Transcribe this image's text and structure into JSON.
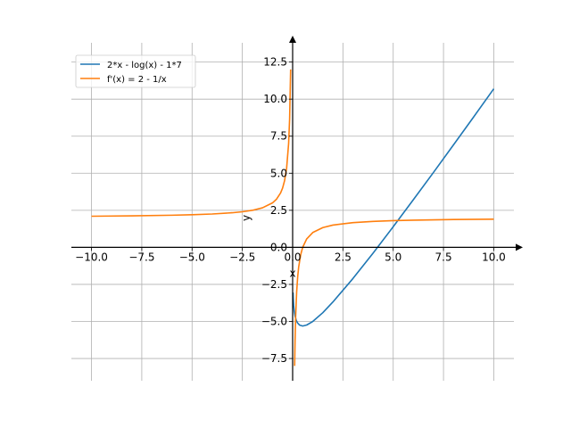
{
  "chart_data": {
    "type": "line",
    "xlabel": "x",
    "ylabel": "y",
    "xlim": [
      -11.0,
      11.0
    ],
    "ylim": [
      -9.0,
      13.8
    ],
    "grid": true,
    "legend": "top-left",
    "x_ticks": [
      -10.0,
      -7.5,
      -5.0,
      -2.5,
      0.0,
      2.5,
      5.0,
      7.5,
      10.0
    ],
    "x_tick_labels": [
      "−10.0",
      "−7.5",
      "−5.0",
      "−2.5",
      "0.0",
      "2.5",
      "5.0",
      "7.5",
      "10.0"
    ],
    "y_ticks": [
      -7.5,
      -5.0,
      -2.5,
      0.0,
      2.5,
      5.0,
      7.5,
      10.0,
      12.5
    ],
    "y_tick_labels": [
      "−7.5",
      "−5.0",
      "−2.5",
      "0.0",
      "2.5",
      "5.0",
      "7.5",
      "10.0",
      "12.5"
    ],
    "series": [
      {
        "name": "2*x - log(x) - 1*7",
        "color": "#1f77b4",
        "x": [
          0.02,
          0.03,
          0.05,
          0.08,
          0.12,
          0.18,
          0.25,
          0.35,
          0.5,
          0.7,
          1.0,
          1.5,
          2.0,
          3.0,
          4.0,
          5.0,
          6.0,
          7.0,
          8.0,
          9.0,
          10.0
        ],
        "y": [
          -3.05,
          -3.43,
          -3.9,
          -4.31,
          -4.64,
          -4.93,
          -5.11,
          -5.25,
          -5.31,
          -5.24,
          -5.0,
          -4.41,
          -3.69,
          -2.1,
          -0.39,
          1.39,
          3.21,
          5.05,
          6.92,
          8.8,
          10.7
        ]
      },
      {
        "name": "f'(x) = 2 - 1/x",
        "color": "#ff7f0e",
        "x": [
          -10.0,
          -8.0,
          -6.0,
          -5.0,
          -4.0,
          -3.0,
          -2.5,
          -2.0,
          -1.5,
          -1.0,
          -0.8,
          -0.6,
          -0.5,
          -0.4,
          -0.3,
          -0.2,
          -0.15,
          -0.1,
          null,
          0.1,
          0.12,
          0.15,
          0.2,
          0.25,
          0.3,
          0.4,
          0.5,
          0.7,
          1.0,
          1.5,
          2.0,
          3.0,
          4.0,
          5.0,
          6.0,
          7.0,
          8.0,
          10.0
        ],
        "y": [
          2.1,
          2.125,
          2.167,
          2.2,
          2.25,
          2.333,
          2.4,
          2.5,
          2.667,
          3.0,
          3.25,
          3.667,
          4.0,
          4.5,
          5.333,
          7.0,
          8.667,
          12.0,
          null,
          -8.0,
          -6.333,
          -4.667,
          -3.0,
          -2.0,
          -1.333,
          -0.5,
          0.0,
          0.571,
          1.0,
          1.333,
          1.5,
          1.667,
          1.75,
          1.8,
          1.833,
          1.857,
          1.875,
          1.9
        ]
      }
    ]
  }
}
